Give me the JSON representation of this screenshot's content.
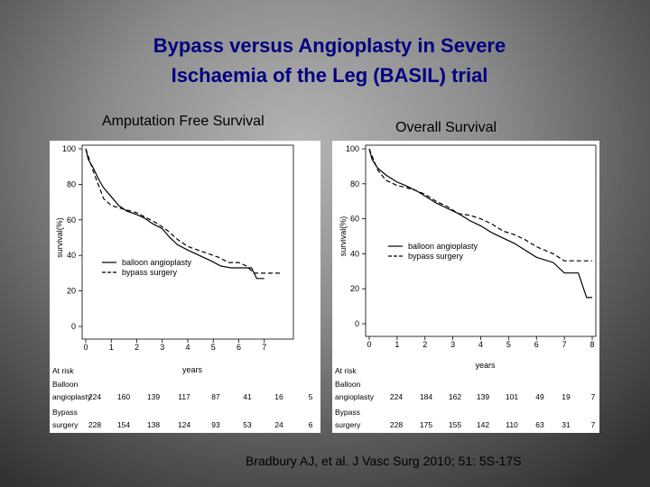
{
  "slide": {
    "title_line1": "Bypass versus Angioplasty in Severe",
    "title_line2": "Ischaemia of the Leg (BASIL) trial",
    "citation": "Bradbury AJ, et al. J Vasc Surg 2010; 51: 5S-17S"
  },
  "colors": {
    "title": "#000080",
    "line": "#000000",
    "chart_bg": "#ffffff"
  },
  "chart_data": [
    {
      "type": "line",
      "title": "Amputation Free Survival",
      "xlabel": "years",
      "ylabel": "survival(%)",
      "xlim": [
        0,
        8
      ],
      "ylim": [
        0,
        100
      ],
      "x_ticks": [
        0,
        1,
        2,
        3,
        4,
        5,
        6,
        7
      ],
      "y_ticks": [
        0,
        20,
        40,
        60,
        80,
        100
      ],
      "legend_position": "center-left",
      "series": [
        {
          "name": "balloon angioplasty",
          "dash": "solid",
          "x": [
            0,
            0.1,
            0.3,
            0.5,
            0.7,
            1.0,
            1.3,
            1.6,
            2.0,
            2.3,
            2.6,
            3.0,
            3.3,
            3.6,
            4.0,
            4.3,
            4.6,
            4.9,
            5.3,
            5.7,
            6.0,
            6.5,
            6.7,
            7.0
          ],
          "y": [
            100,
            94,
            89,
            83,
            78,
            73,
            68,
            65,
            63,
            61,
            58,
            55,
            50,
            46,
            43,
            41,
            39,
            37,
            34,
            33,
            33,
            33,
            27,
            27
          ]
        },
        {
          "name": "bypass surgery",
          "dash": "dashed",
          "x": [
            0,
            0.3,
            0.7,
            1.0,
            1.5,
            2.0,
            2.4,
            2.8,
            3.2,
            3.6,
            4.0,
            4.4,
            4.8,
            5.2,
            5.6,
            6.0,
            6.3,
            6.6,
            7.0,
            7.7
          ],
          "y": [
            100,
            87,
            72,
            68,
            66,
            64,
            61,
            58,
            54,
            49,
            45,
            43,
            41,
            39,
            36,
            36,
            34,
            30,
            30,
            30
          ]
        }
      ],
      "at_risk": {
        "header": "At risk",
        "rows": [
          {
            "label1": "Balloon",
            "label2": "angioplasty",
            "values": [
              "224",
              "160",
              "139",
              "117",
              "87",
              "41",
              "16",
              "5"
            ]
          },
          {
            "label1": "Bypass",
            "label2": "surgery",
            "values": [
              "228",
              "154",
              "138",
              "124",
              "93",
              "53",
              "24",
              "6"
            ]
          }
        ]
      }
    },
    {
      "type": "line",
      "title": "Overall Survival",
      "xlabel": "years",
      "ylabel": "survival(%)",
      "xlim": [
        0,
        8
      ],
      "ylim": [
        0,
        100
      ],
      "x_ticks": [
        0,
        1,
        2,
        3,
        4,
        5,
        6,
        7,
        8
      ],
      "y_ticks": [
        0,
        20,
        40,
        60,
        80,
        100
      ],
      "legend_position": "center-left",
      "series": [
        {
          "name": "balloon angioplasty",
          "dash": "solid",
          "x": [
            0,
            0.1,
            0.3,
            0.6,
            1.0,
            1.3,
            1.7,
            2.0,
            2.4,
            2.8,
            3.2,
            3.6,
            4.0,
            4.4,
            4.8,
            5.2,
            5.6,
            6.0,
            6.6,
            7.0,
            7.5,
            7.8,
            8.0
          ],
          "y": [
            100,
            94,
            89,
            85,
            81,
            79,
            76,
            73,
            69,
            66,
            63,
            59,
            56,
            52,
            49,
            46,
            42,
            38,
            35,
            29,
            29,
            15,
            15
          ]
        },
        {
          "name": "bypass surgery",
          "dash": "dashed",
          "x": [
            0,
            0.3,
            0.6,
            1.0,
            1.3,
            1.7,
            2.0,
            2.4,
            2.8,
            3.2,
            3.6,
            4.0,
            4.4,
            4.8,
            5.2,
            5.6,
            6.0,
            6.6,
            7.0,
            7.5,
            8.0
          ],
          "y": [
            100,
            88,
            82,
            79,
            78,
            76,
            74,
            70,
            67,
            63,
            62,
            60,
            57,
            53,
            51,
            48,
            44,
            40,
            36,
            36,
            36
          ]
        }
      ],
      "at_risk": {
        "header": "At risk",
        "rows": [
          {
            "label1": "Balloon",
            "label2": "angioplasty",
            "values": [
              "224",
              "184",
              "162",
              "139",
              "101",
              "49",
              "19",
              "7"
            ]
          },
          {
            "label1": "Bypass",
            "label2": "surgery",
            "values": [
              "228",
              "175",
              "155",
              "142",
              "110",
              "63",
              "31",
              "7"
            ]
          }
        ]
      }
    }
  ]
}
